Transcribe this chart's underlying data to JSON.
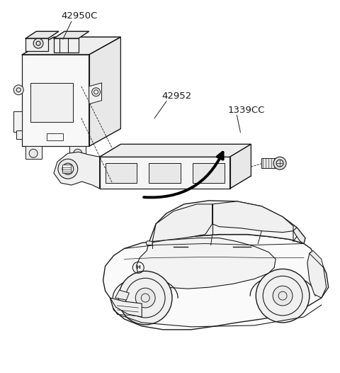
{
  "background_color": "#ffffff",
  "line_color": "#1a1a1a",
  "label_42950C": "42950C",
  "label_42952": "42952",
  "label_1339CC": "1339CC",
  "fig_width": 4.8,
  "fig_height": 5.26,
  "dpi": 100
}
